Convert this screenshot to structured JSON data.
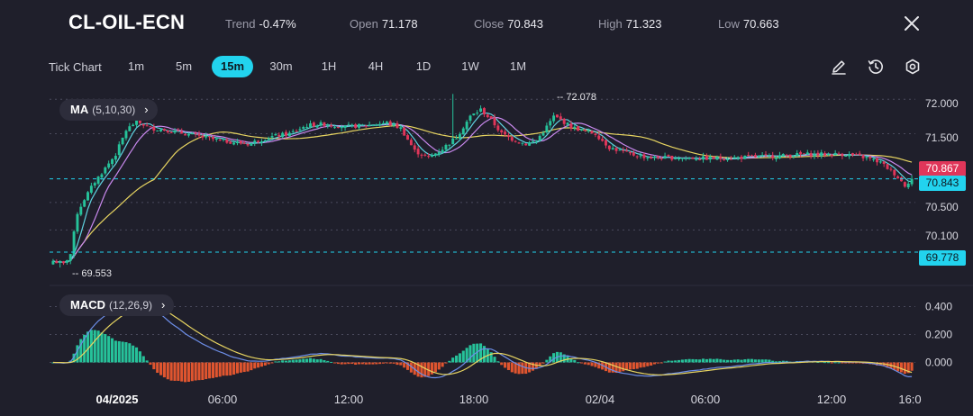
{
  "header": {
    "symbol": "CL-OIL-ECN",
    "trend_label": "Trend",
    "trend_value": "-0.47%",
    "open_label": "Open",
    "open_value": "71.178",
    "close_label": "Close",
    "close_value": "70.843",
    "high_label": "High",
    "high_value": "71.323",
    "low_label": "Low",
    "low_value": "70.663",
    "close_icon": "close-icon"
  },
  "timeframes": {
    "tick_label": "Tick Chart",
    "items": [
      "1m",
      "5m",
      "15m",
      "30m",
      "1H",
      "4H",
      "1D",
      "1W",
      "1M"
    ],
    "active": "15m"
  },
  "tools": [
    "pencil-icon",
    "clock-reset-icon",
    "settings-icon"
  ],
  "indicators": {
    "ma": {
      "name": "MA",
      "params": "(5,10,30)",
      "chevron": "›"
    },
    "macd": {
      "name": "MACD",
      "params": "(12,26,9)",
      "chevron": "›"
    }
  },
  "price_axis": [
    "72.000",
    "71.500",
    "70.500",
    "70.100"
  ],
  "price_tags": {
    "ma": {
      "value": "70.867",
      "color": "#e0365a"
    },
    "close": {
      "value": "70.843",
      "color": "#22d3ee"
    },
    "low_line": {
      "value": "69.778",
      "color": "#22d3ee"
    }
  },
  "annotations": {
    "high": "72.078",
    "low": "69.553"
  },
  "macd_axis": [
    "0.400",
    "0.200",
    "0.000"
  ],
  "time_axis": [
    "04/2025",
    "06:00",
    "12:00",
    "18:00",
    "02/04",
    "06:00",
    "12:00",
    "16:0"
  ],
  "colors": {
    "bg": "#1f1f2b",
    "up": "#26c29a",
    "down": "#e0365a",
    "accent": "#22d3ee",
    "ma5": "#5fd3e0",
    "ma10": "#c989ee",
    "ma30": "#e8d561",
    "hist_up": "#26c29a",
    "hist_down": "#e0552f"
  },
  "chart_data": {
    "type": "candlestick",
    "instrument": "CL-OIL-ECN",
    "interval": "15m",
    "price_range": [
      69.45,
      72.2
    ],
    "key_levels": {
      "high": 72.078,
      "low": 69.553,
      "last": 70.843,
      "ma_last": 70.867,
      "low_line": 69.778
    },
    "anchors_close": [
      [
        0,
        69.65
      ],
      [
        3,
        69.6
      ],
      [
        5,
        69.75
      ],
      [
        7,
        70.35
      ],
      [
        9,
        70.55
      ],
      [
        12,
        70.8
      ],
      [
        15,
        71.0
      ],
      [
        18,
        71.2
      ],
      [
        21,
        71.55
      ],
      [
        24,
        71.68
      ],
      [
        28,
        71.58
      ],
      [
        33,
        71.55
      ],
      [
        40,
        71.48
      ],
      [
        48,
        71.4
      ],
      [
        56,
        71.35
      ],
      [
        62,
        71.45
      ],
      [
        68,
        71.5
      ],
      [
        73,
        71.62
      ],
      [
        78,
        71.64
      ],
      [
        84,
        71.6
      ],
      [
        90,
        71.62
      ],
      [
        96,
        71.66
      ],
      [
        100,
        71.58
      ],
      [
        104,
        71.25
      ],
      [
        108,
        71.15
      ],
      [
        112,
        71.28
      ],
      [
        116,
        71.45
      ],
      [
        120,
        71.75
      ],
      [
        123,
        71.85
      ],
      [
        126,
        71.7
      ],
      [
        129,
        71.5
      ],
      [
        132,
        71.42
      ],
      [
        136,
        71.35
      ],
      [
        139,
        71.4
      ],
      [
        142,
        71.6
      ],
      [
        144,
        71.75
      ],
      [
        146,
        71.7
      ],
      [
        149,
        71.6
      ],
      [
        152,
        71.55
      ],
      [
        156,
        71.5
      ],
      [
        160,
        71.3
      ],
      [
        166,
        71.2
      ],
      [
        172,
        71.15
      ],
      [
        180,
        71.15
      ],
      [
        190,
        71.14
      ],
      [
        200,
        71.16
      ],
      [
        210,
        71.18
      ],
      [
        216,
        71.2
      ],
      [
        222,
        71.2
      ],
      [
        228,
        71.2
      ],
      [
        234,
        71.15
      ],
      [
        238,
        71.08
      ],
      [
        242,
        70.92
      ],
      [
        245,
        70.75
      ],
      [
        247,
        70.85
      ]
    ],
    "macd_range": [
      -0.1,
      0.5
    ]
  }
}
